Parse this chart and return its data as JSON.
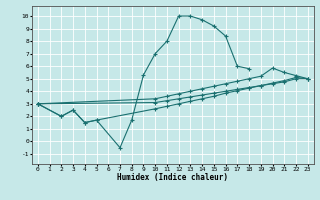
{
  "xlabel": "Humidex (Indice chaleur)",
  "bg_color": "#c6e8e8",
  "line_color": "#1a7070",
  "grid_color": "#ffffff",
  "xlim": [
    -0.5,
    23.5
  ],
  "ylim": [
    -1.8,
    10.8
  ],
  "xticks": [
    0,
    1,
    2,
    3,
    4,
    5,
    6,
    7,
    8,
    9,
    10,
    11,
    12,
    13,
    14,
    15,
    16,
    17,
    18,
    19,
    20,
    21,
    22,
    23
  ],
  "yticks": [
    -1,
    0,
    1,
    2,
    3,
    4,
    5,
    6,
    7,
    8,
    9,
    10
  ],
  "curve1_x": [
    0,
    2,
    3,
    4,
    5,
    7,
    8,
    9,
    10,
    11,
    12,
    13,
    14,
    15,
    16,
    17,
    18
  ],
  "curve1_y": [
    3.0,
    2.0,
    2.5,
    1.5,
    1.7,
    -0.5,
    1.7,
    5.3,
    7.0,
    8.0,
    10.0,
    10.0,
    9.7,
    9.2,
    8.4,
    6.0,
    5.8
  ],
  "curve2_x": [
    0,
    10,
    11,
    12,
    13,
    14,
    15,
    16,
    17,
    18,
    19,
    20,
    21,
    22,
    23
  ],
  "curve2_y": [
    3.0,
    3.1,
    3.25,
    3.4,
    3.55,
    3.7,
    3.85,
    4.0,
    4.15,
    4.3,
    4.45,
    4.6,
    4.75,
    5.0,
    5.0
  ],
  "curve3_x": [
    0,
    10,
    11,
    12,
    13,
    14,
    15,
    16,
    17,
    18,
    19,
    20,
    21,
    22,
    23
  ],
  "curve3_y": [
    3.0,
    3.4,
    3.6,
    3.8,
    4.0,
    4.2,
    4.4,
    4.6,
    4.8,
    5.0,
    5.2,
    5.85,
    5.5,
    5.25,
    5.0
  ],
  "curve4_x": [
    0,
    2,
    3,
    4,
    5,
    10,
    11,
    12,
    13,
    14,
    15,
    16,
    17,
    18,
    19,
    20,
    21,
    22,
    23
  ],
  "curve4_y": [
    3.0,
    2.0,
    2.5,
    1.5,
    1.7,
    2.6,
    2.8,
    3.0,
    3.2,
    3.4,
    3.6,
    3.85,
    4.05,
    4.25,
    4.45,
    4.65,
    4.85,
    5.1,
    5.0
  ]
}
